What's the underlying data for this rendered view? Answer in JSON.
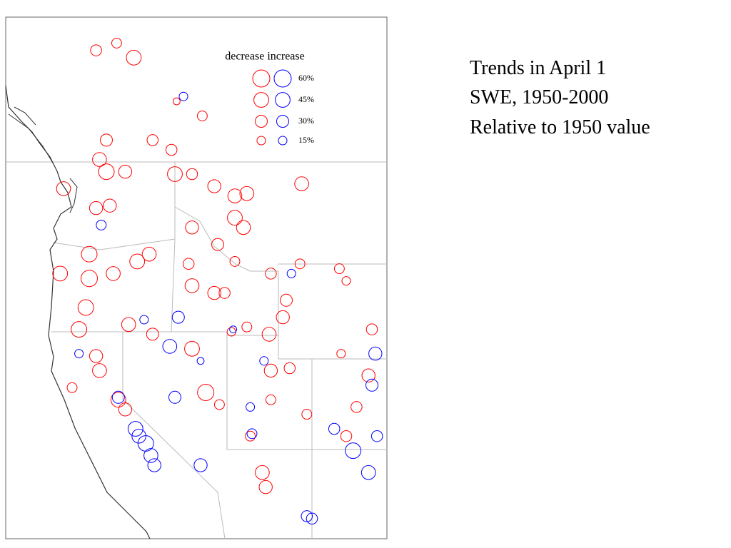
{
  "title": [
    "Trends in April 1",
    "SWE, 1950-2000",
    "Relative to 1950 value"
  ],
  "legend": {
    "header": "decrease increase",
    "sizes": [
      {
        "value": 60,
        "label": "60%"
      },
      {
        "value": 45,
        "label": "45%"
      },
      {
        "value": 30,
        "label": "30%"
      },
      {
        "value": 15,
        "label": "15%"
      }
    ]
  },
  "colors": {
    "decrease": "#ff0000",
    "increase": "#0000ff"
  },
  "stations": [
    [
      -121.6,
      53.6,
      -25
    ],
    [
      -120.4,
      53.9,
      -20
    ],
    [
      -119.4,
      53.3,
      -45
    ],
    [
      -121.0,
      49.9,
      -30
    ],
    [
      -121.4,
      49.1,
      -40
    ],
    [
      -121.0,
      48.6,
      -50
    ],
    [
      -119.9,
      48.6,
      -35
    ],
    [
      -123.5,
      47.9,
      -40
    ],
    [
      -121.6,
      47.1,
      -35
    ],
    [
      -120.8,
      47.2,
      -35
    ],
    [
      -117.0,
      48.5,
      -45
    ],
    [
      -117.2,
      49.5,
      -25
    ],
    [
      -114.7,
      48.0,
      -35
    ],
    [
      -113.5,
      47.6,
      -40
    ],
    [
      -112.8,
      47.7,
      -40
    ],
    [
      -113.5,
      46.7,
      -45
    ],
    [
      -113.0,
      46.3,
      -40
    ],
    [
      -116.0,
      48.5,
      -25
    ],
    [
      -116.0,
      46.3,
      -35
    ],
    [
      -109.6,
      48.1,
      -40
    ],
    [
      -122.0,
      45.2,
      -50
    ],
    [
      -122.0,
      44.2,
      -55
    ],
    [
      -122.2,
      43.0,
      -50
    ],
    [
      -122.6,
      42.1,
      -50
    ],
    [
      -123.7,
      44.4,
      -45
    ],
    [
      -120.6,
      44.4,
      -40
    ],
    [
      -119.2,
      44.9,
      -45
    ],
    [
      -118.5,
      45.2,
      -40
    ],
    [
      -116.2,
      44.8,
      -25
    ],
    [
      -116.0,
      43.9,
      -40
    ],
    [
      -114.7,
      43.6,
      -35
    ],
    [
      -114.1,
      43.6,
      -25
    ],
    [
      -114.5,
      45.6,
      -30
    ],
    [
      -113.5,
      44.9,
      -20
    ],
    [
      -119.7,
      42.3,
      -40
    ],
    [
      -118.3,
      41.9,
      -30
    ],
    [
      -116.0,
      41.3,
      -45
    ],
    [
      -115.2,
      39.5,
      -55
    ],
    [
      -114.4,
      39.0,
      -20
    ],
    [
      -121.6,
      41.0,
      -35
    ],
    [
      -121.4,
      40.4,
      -40
    ],
    [
      -120.3,
      39.2,
      -45
    ],
    [
      -119.9,
      38.8,
      -35
    ],
    [
      -123.0,
      39.7,
      -20
    ],
    [
      -111.4,
      44.4,
      -25
    ],
    [
      -110.5,
      43.3,
      -30
    ],
    [
      -110.7,
      42.6,
      -35
    ],
    [
      -111.5,
      41.9,
      -40
    ],
    [
      -111.4,
      40.4,
      -35
    ],
    [
      -111.4,
      39.2,
      -20
    ],
    [
      -110.3,
      40.5,
      -25
    ],
    [
      -105.5,
      42.1,
      -25
    ],
    [
      -105.7,
      40.2,
      -35
    ],
    [
      -106.4,
      38.9,
      -25
    ],
    [
      -107.0,
      37.7,
      -25
    ],
    [
      -107.4,
      44.6,
      -20
    ],
    [
      -107.0,
      44.1,
      -15
    ],
    [
      -109.3,
      38.6,
      -20
    ],
    [
      -111.9,
      36.2,
      -40
    ],
    [
      -111.7,
      35.6,
      -35
    ],
    [
      -112.6,
      37.7,
      -20
    ],
    [
      -109.7,
      44.8,
      -20
    ],
    [
      -107.3,
      41.1,
      -15
    ],
    [
      -116.9,
      51.5,
      -10
    ],
    [
      -115.4,
      50.9,
      -20
    ],
    [
      -118.3,
      49.9,
      -25
    ],
    [
      -113.7,
      42.0,
      -15
    ],
    [
      -112.8,
      42.2,
      -20
    ],
    [
      -121.3,
      46.4,
      20
    ],
    [
      -116.8,
      42.6,
      30
    ],
    [
      -117.3,
      41.4,
      40
    ],
    [
      -117.0,
      39.3,
      30
    ],
    [
      -115.5,
      36.5,
      35
    ],
    [
      -120.3,
      39.3,
      30
    ],
    [
      -119.3,
      38.0,
      45
    ],
    [
      -118.7,
      37.4,
      50
    ],
    [
      -118.4,
      36.9,
      40
    ],
    [
      -118.2,
      36.5,
      35
    ],
    [
      -119.1,
      37.7,
      40
    ],
    [
      -122.6,
      41.1,
      15
    ],
    [
      -112.5,
      37.8,
      20
    ],
    [
      -112.6,
      38.9,
      15
    ],
    [
      -105.3,
      41.1,
      35
    ],
    [
      -106.6,
      37.1,
      50
    ],
    [
      -105.7,
      36.2,
      40
    ],
    [
      -105.2,
      37.7,
      25
    ],
    [
      -107.7,
      38.0,
      25
    ],
    [
      -109.3,
      34.4,
      25
    ],
    [
      -109.0,
      34.3,
      25
    ],
    [
      -116.5,
      51.7,
      15
    ],
    [
      -118.8,
      42.5,
      15
    ],
    [
      -113.6,
      42.1,
      10
    ],
    [
      -110.2,
      44.4,
      15
    ],
    [
      -105.5,
      39.8,
      30
    ],
    [
      -111.8,
      40.8,
      15
    ],
    [
      -115.5,
      40.8,
      10
    ]
  ]
}
